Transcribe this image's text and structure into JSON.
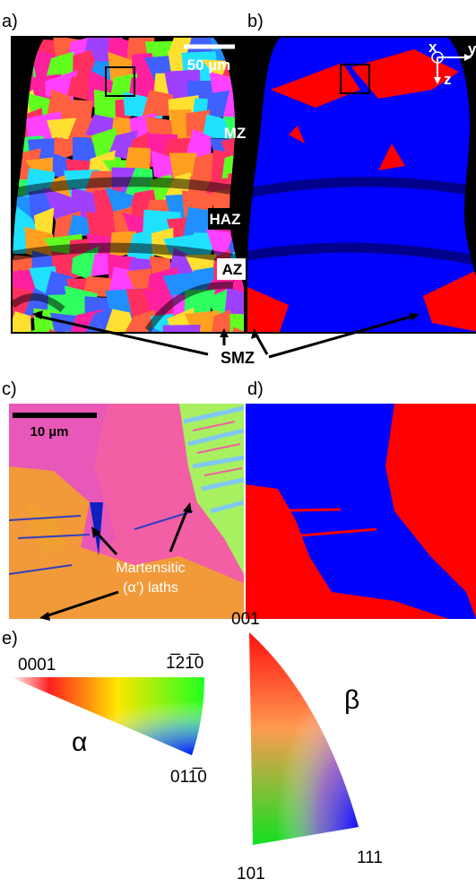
{
  "panels": {
    "a": {
      "label": "a)",
      "scale_bar": "50 µm",
      "zones": [
        "MZ",
        "HAZ",
        "AZ"
      ]
    },
    "b": {
      "label": "b)",
      "axes": [
        "x",
        "y",
        "z"
      ]
    },
    "smz": "SMZ",
    "c": {
      "label": "c)",
      "scale_bar": "10 µm",
      "annotation": [
        "Martensitic",
        "(α’) laths"
      ]
    },
    "d": {
      "label": "d)"
    },
    "e": {
      "label": "e)",
      "alpha": {
        "symbol": "α",
        "corners": [
          "0001",
          "1̅21̅0",
          "011̅0"
        ]
      },
      "beta": {
        "symbol": "β",
        "corners": [
          "001",
          "101",
          "111"
        ]
      }
    }
  }
}
